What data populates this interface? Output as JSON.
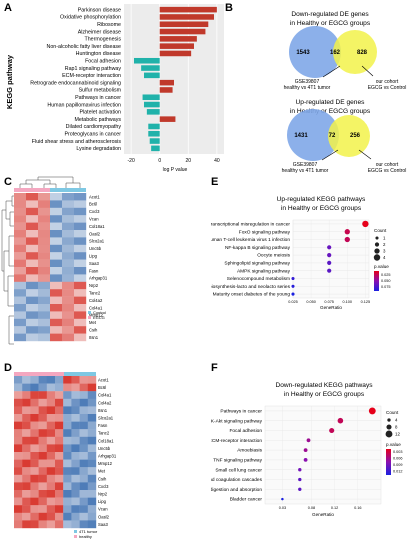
{
  "panels": {
    "A": {
      "label": "A",
      "ylabel": "KEGG pathway",
      "xlabel": "log P value",
      "xticks": [
        "-20",
        "0",
        "20",
        "40"
      ],
      "chart_data": {
        "type": "bar",
        "orientation": "horizontal",
        "xlim": [
          -25,
          45
        ],
        "colors": {
          "up": "#c0392b",
          "down": "#20b2aa"
        },
        "categories": [
          "Parkinson disease",
          "Oxidative phosphorylation",
          "Ribosome",
          "Alzheimer disease",
          "Thermogenesis",
          "Non-alcoholic fatty liver disease",
          "Huntington disease",
          "Focal adhesion",
          "Rap1 signaling pathway",
          "ECM-receptor interaction",
          "Retrograde endocannabinoid signaling",
          "Sulfur metabolism",
          "Pathways in cancer",
          "Human papillomavirus infection",
          "Platelet activation",
          "Metabolic pathways",
          "Dilated cardiomyopathy",
          "Proteoglycans in cancer",
          "Fluid shear stress and atherosclerosis",
          "Lysine degradation"
        ],
        "values": [
          40,
          38,
          34,
          32,
          26,
          24,
          22,
          -18,
          -13,
          -11,
          10,
          9,
          -12,
          -11,
          -9,
          11,
          -8,
          -8,
          -7,
          -6
        ]
      }
    },
    "B": {
      "label": "B",
      "top": {
        "title_line1": "Down-regulated DE genes",
        "title_line2": "in Healthy or EGCG groups",
        "left_count": "1543",
        "overlap_count": "162",
        "right_count": "828",
        "left_label_line1": "GSE39807",
        "left_label_line2": "healthy vs 4T1 tumor",
        "right_label_line1": "our cohort",
        "right_label_line2": "EGCG vs Control"
      },
      "bottom": {
        "title_line1": "Up-regulated DE genes",
        "title_line2": "in Healthy or EGCG groups",
        "left_count": "1431",
        "overlap_count": "72",
        "right_count": "256",
        "left_label_line1": "GSE39807",
        "left_label_line2": "healthy vs 4T1 tumor",
        "right_label_line1": "our cohort",
        "right_label_line2": "EGCG vs Control"
      },
      "colors": {
        "left": "#7fa7e8",
        "right": "#f2f24a"
      }
    },
    "C": {
      "label": "C",
      "genes": [
        "Acot1",
        "Bc6l",
        "Cxcl3",
        "Vcan",
        "Col18a1",
        "Oasl2",
        "Slco2a1",
        "Unc5b",
        "Lipg",
        "Saa3",
        "Fasn",
        "Arhgap31",
        "Nrp2",
        "Tanc2",
        "Col4a2",
        "Col4a1",
        "Mmp12",
        "Met",
        "Csih",
        "Itsn1"
      ],
      "legend": [
        "Control",
        "EGCG"
      ]
    },
    "D": {
      "label": "D",
      "genes": [
        "Acot1",
        "Bc6l",
        "Col4a1",
        "Col4a2",
        "Itsn1",
        "Slco2a1",
        "Fasn",
        "Tanc2",
        "Col18a1",
        "Unc5b",
        "Arhgap31",
        "Mmp12",
        "Met",
        "Csih",
        "Cxcl3",
        "Nrp2",
        "Lipg",
        "Vcan",
        "Oasl2",
        "Saa3"
      ],
      "legend": [
        "4T1 tumor",
        "healthy"
      ]
    },
    "E": {
      "label": "E",
      "title_line1": "Up-regulated KEGG pathways",
      "title_line2": "in Healthy or EGCG groups",
      "xlabel": "GeneRatio",
      "xticks": [
        "0.025",
        "0.050",
        "0.075",
        "0.100",
        "0.125"
      ],
      "legend_count_title": "Count",
      "legend_counts": [
        "1",
        "2",
        "3",
        "4"
      ],
      "legend_p_title": "p.value",
      "legend_p_ticks": [
        "0.025",
        "0.050",
        "0.075"
      ],
      "chart_data": {
        "type": "scatter",
        "xlim": [
          0.025,
          0.13
        ],
        "categories": [
          "Transcriptional misregulation in cancer",
          "FoxO signaling pathway",
          "Human T-cell leukemia virus 1 infection",
          "NF-kappa B signaling pathway",
          "Oocyte meiosis",
          "Sphingolipid signaling pathway",
          "AMPK signaling pathway",
          "Selenocompound metabolism",
          "Glycosphingolipid biosynthesis-lacto and neolacto series",
          "Maturity onset diabetes of the young"
        ],
        "gene_ratio": [
          0.125,
          0.1,
          0.1,
          0.075,
          0.075,
          0.075,
          0.075,
          0.025,
          0.025,
          0.025
        ],
        "count": [
          4,
          3,
          3,
          2,
          2,
          2,
          2,
          1,
          1,
          1
        ],
        "p_value": [
          0.003,
          0.018,
          0.02,
          0.06,
          0.06,
          0.065,
          0.065,
          0.08,
          0.085,
          0.09
        ]
      }
    },
    "F": {
      "label": "F",
      "title_line1": "Down-regulated KEGG pathways",
      "title_line2": "in Healthy or EGCG groups",
      "xlabel": "GeneRatio",
      "xticks": [
        "0.03",
        "0.08",
        "0.12",
        "0.16"
      ],
      "legend_count_title": "Count",
      "legend_counts": [
        "4",
        "8",
        "12"
      ],
      "legend_p_title": "p.value",
      "legend_p_ticks": [
        "0.003",
        "0.006",
        "0.009",
        "0.012"
      ],
      "chart_data": {
        "type": "scatter",
        "xlim": [
          0.0,
          0.2
        ],
        "categories": [
          "Pathways in cancer",
          "PI3K-Akt signaling pathway",
          "Focal adhesion",
          "ECM-receptor interaction",
          "Amoebiasis",
          "TNF signaling pathway",
          "Small cell lung cancer",
          "Complement and coagulation cascades",
          "Protein digestion and absorption",
          "Bladder cancer"
        ],
        "gene_ratio": [
          0.185,
          0.13,
          0.115,
          0.075,
          0.07,
          0.07,
          0.06,
          0.06,
          0.06,
          0.03
        ],
        "count": [
          12,
          9,
          8,
          5,
          5,
          5,
          4,
          4,
          4,
          2
        ],
        "p_value": [
          0.002,
          0.004,
          0.004,
          0.006,
          0.006,
          0.007,
          0.008,
          0.009,
          0.009,
          0.012
        ]
      }
    }
  }
}
